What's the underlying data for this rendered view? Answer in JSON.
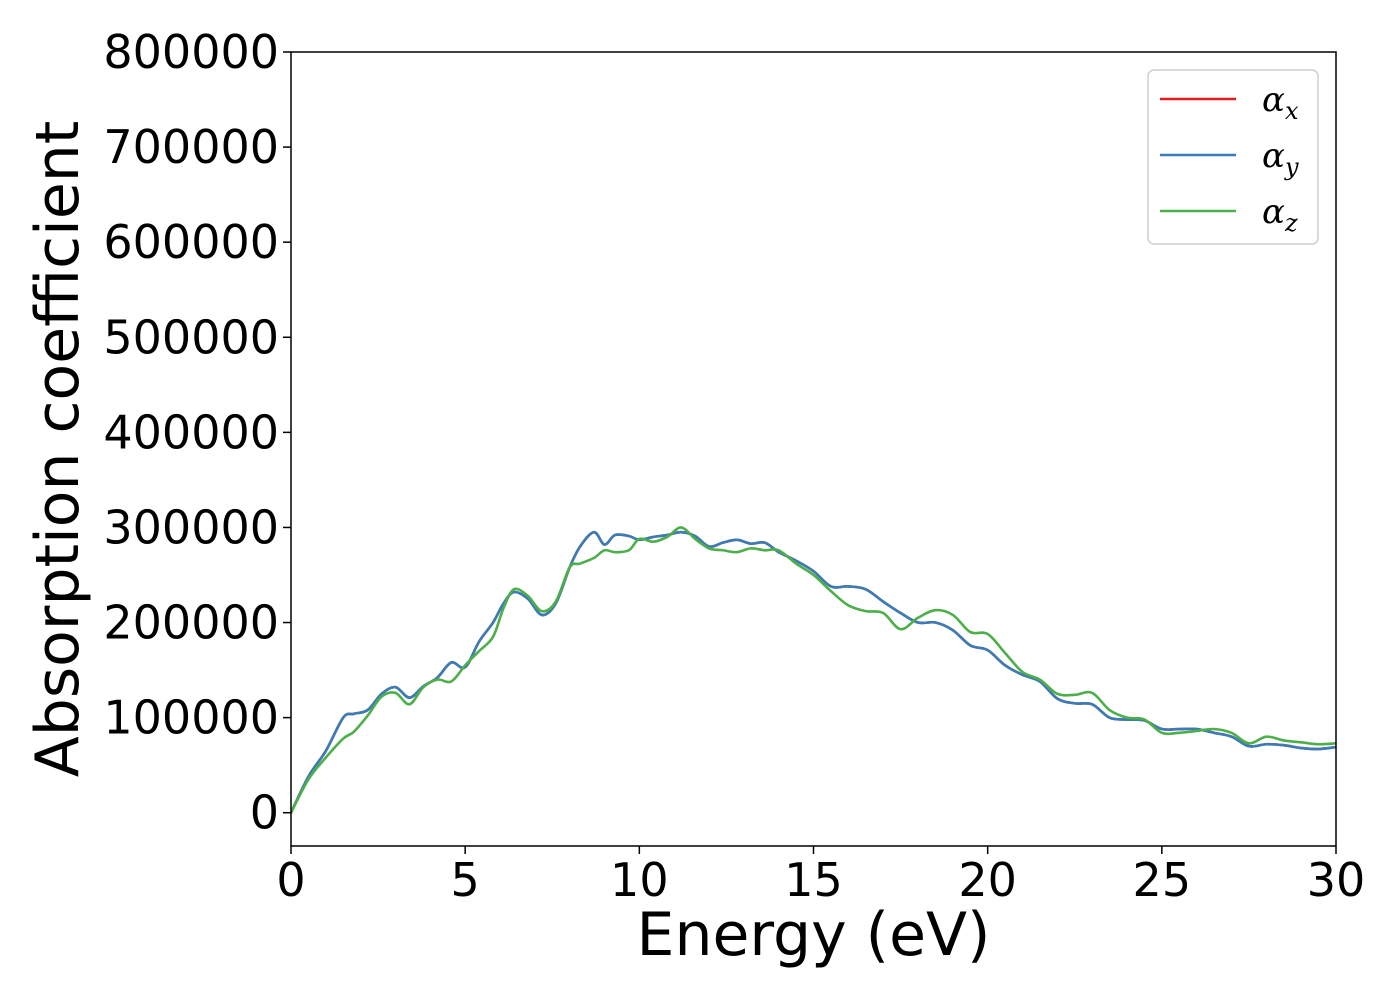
{
  "chart_data": {
    "type": "line",
    "title": "",
    "xlabel": "Energy (eV)",
    "ylabel": "Absorption coefficient",
    "xlim": [
      0,
      30
    ],
    "ylim": [
      -35000,
      800000
    ],
    "xticks": [
      0,
      5,
      10,
      15,
      20,
      25,
      30
    ],
    "yticks": [
      0,
      100000,
      200000,
      300000,
      400000,
      500000,
      600000,
      700000,
      800000
    ],
    "grid": false,
    "legend_position": "top-right",
    "series": [
      {
        "name": "αx",
        "symbol": "α",
        "subscript": "x",
        "color": "#e41a1c",
        "x": [
          0,
          0.5,
          1,
          1.5,
          1.8,
          2.2,
          2.6,
          3,
          3.4,
          3.8,
          4.2,
          4.6,
          5,
          5.4,
          5.8,
          6.1,
          6.4,
          6.8,
          7.2,
          7.6,
          8,
          8.3,
          8.7,
          9,
          9.3,
          9.7,
          10,
          10.4,
          10.8,
          11.2,
          11.6,
          12,
          12.4,
          12.8,
          13.2,
          13.6,
          14,
          14.5,
          15,
          15.5,
          16,
          16.5,
          17,
          17.5,
          18,
          18.5,
          19,
          19.5,
          20,
          20.5,
          21,
          21.5,
          22,
          22.5,
          23,
          23.5,
          24,
          24.5,
          25,
          25.5,
          26,
          26.5,
          27,
          27.5,
          28,
          28.5,
          29,
          29.5,
          30
        ],
        "y": [
          0,
          38000,
          65000,
          100000,
          104000,
          108000,
          125000,
          132000,
          121000,
          133000,
          142000,
          158000,
          153000,
          180000,
          200000,
          220000,
          232000,
          225000,
          208000,
          220000,
          258000,
          280000,
          295000,
          282000,
          292000,
          291000,
          287000,
          290000,
          292000,
          295000,
          291000,
          280000,
          284000,
          287000,
          283000,
          284000,
          274000,
          265000,
          254000,
          238000,
          238000,
          235000,
          222000,
          210000,
          200000,
          200000,
          192000,
          176000,
          171000,
          155000,
          145000,
          138000,
          120000,
          115000,
          114000,
          100000,
          98000,
          97000,
          88000,
          88000,
          88000,
          84000,
          80000,
          70000,
          72000,
          71000,
          68000,
          67000,
          69000
        ]
      },
      {
        "name": "αy",
        "symbol": "α",
        "subscript": "y",
        "color": "#377eb8",
        "x": [
          0,
          0.5,
          1,
          1.5,
          1.8,
          2.2,
          2.6,
          3,
          3.4,
          3.8,
          4.2,
          4.6,
          5,
          5.4,
          5.8,
          6.1,
          6.4,
          6.8,
          7.2,
          7.6,
          8,
          8.3,
          8.7,
          9,
          9.3,
          9.7,
          10,
          10.4,
          10.8,
          11.2,
          11.6,
          12,
          12.4,
          12.8,
          13.2,
          13.6,
          14,
          14.5,
          15,
          15.5,
          16,
          16.5,
          17,
          17.5,
          18,
          18.5,
          19,
          19.5,
          20,
          20.5,
          21,
          21.5,
          22,
          22.5,
          23,
          23.5,
          24,
          24.5,
          25,
          25.5,
          26,
          26.5,
          27,
          27.5,
          28,
          28.5,
          29,
          29.5,
          30
        ],
        "y": [
          0,
          38000,
          65000,
          100000,
          104000,
          108000,
          125000,
          132000,
          121000,
          133000,
          142000,
          158000,
          153000,
          180000,
          200000,
          220000,
          232000,
          225000,
          208000,
          220000,
          258000,
          280000,
          295000,
          282000,
          292000,
          291000,
          287000,
          290000,
          292000,
          295000,
          291000,
          280000,
          284000,
          287000,
          283000,
          284000,
          274000,
          265000,
          254000,
          238000,
          238000,
          235000,
          222000,
          210000,
          200000,
          200000,
          192000,
          176000,
          171000,
          155000,
          145000,
          138000,
          120000,
          115000,
          114000,
          100000,
          98000,
          97000,
          88000,
          88000,
          88000,
          84000,
          80000,
          70000,
          72000,
          71000,
          68000,
          67000,
          69000
        ]
      },
      {
        "name": "αz",
        "symbol": "α",
        "subscript": "z",
        "color": "#4daf4a",
        "x": [
          0,
          0.5,
          1,
          1.5,
          1.8,
          2.2,
          2.6,
          3,
          3.4,
          3.8,
          4.2,
          4.6,
          5,
          5.4,
          5.8,
          6.1,
          6.4,
          6.8,
          7.2,
          7.6,
          8,
          8.3,
          8.7,
          9,
          9.3,
          9.7,
          10,
          10.4,
          10.8,
          11.2,
          11.6,
          12,
          12.4,
          12.8,
          13.2,
          13.6,
          14,
          14.5,
          15,
          15.5,
          16,
          16.5,
          17,
          17.5,
          18,
          18.5,
          19,
          19.5,
          20,
          20.5,
          21,
          21.5,
          22,
          22.5,
          23,
          23.5,
          24,
          24.5,
          25,
          25.5,
          26,
          26.5,
          27,
          27.5,
          28,
          28.5,
          29,
          29.5,
          30
        ],
        "y": [
          0,
          35000,
          58000,
          78000,
          85000,
          102000,
          122000,
          126000,
          114000,
          132000,
          140000,
          138000,
          155000,
          170000,
          185000,
          215000,
          235000,
          228000,
          212000,
          222000,
          258000,
          262000,
          268000,
          276000,
          274000,
          276000,
          288000,
          285000,
          290000,
          300000,
          288000,
          278000,
          276000,
          274000,
          278000,
          276000,
          276000,
          262000,
          250000,
          233000,
          218000,
          212000,
          210000,
          193000,
          205000,
          213000,
          208000,
          190000,
          188000,
          168000,
          148000,
          140000,
          125000,
          124000,
          126000,
          108000,
          100000,
          98000,
          84000,
          84000,
          86000,
          88000,
          84000,
          73000,
          80000,
          76000,
          74000,
          72000,
          73000
        ]
      }
    ]
  }
}
